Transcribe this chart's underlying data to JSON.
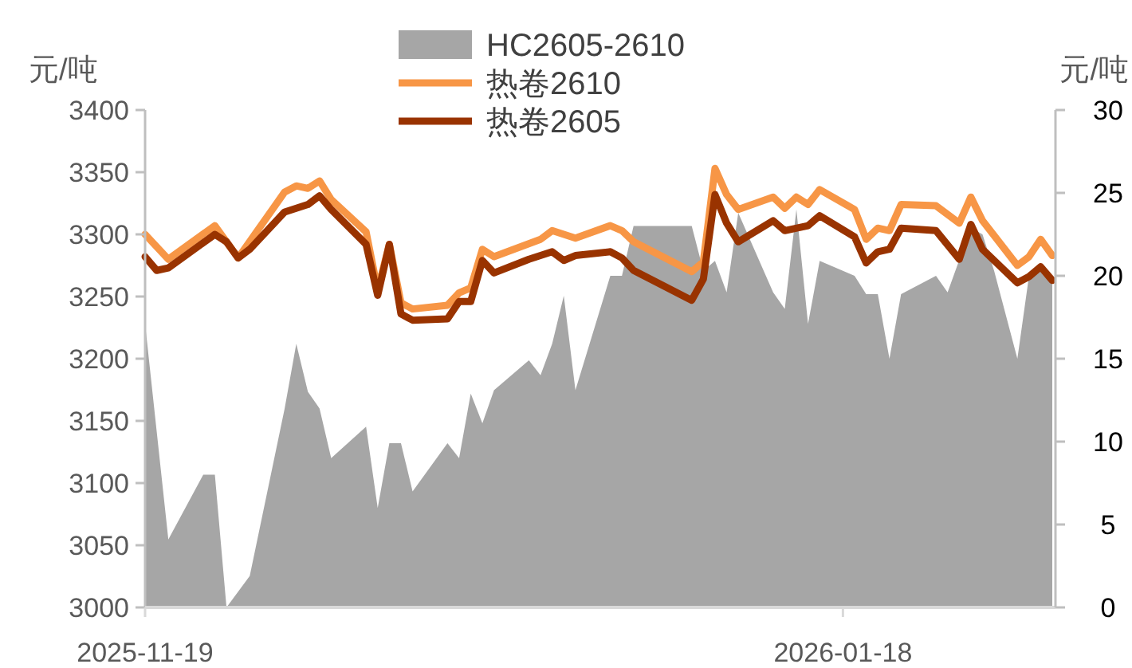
{
  "chart_data": {
    "type": "line",
    "ylabel": "元/吨",
    "y2label": "元/吨",
    "xlim": [
      "2025-11-19",
      "2026-02-05"
    ],
    "xticks": [
      "2025-11-19",
      "2026-01-18"
    ],
    "ylim": [
      3000,
      3400
    ],
    "yticks": [
      3000,
      3050,
      3100,
      3150,
      3200,
      3250,
      3300,
      3350,
      3400
    ],
    "y2lim": [
      0,
      30
    ],
    "y2ticks": [
      0,
      5,
      10,
      15,
      20,
      25,
      30
    ],
    "legend": "top",
    "series": [
      {
        "name": "HC2605-2610",
        "type": "area",
        "axis": "y2",
        "color": "#a6a6a6",
        "x": [
          "2025-11-19",
          "2025-11-21",
          "2025-11-24",
          "2025-11-25",
          "2025-11-26",
          "2025-11-28",
          "2025-12-01",
          "2025-12-02",
          "2025-12-03",
          "2025-12-04",
          "2025-12-05",
          "2025-12-08",
          "2025-12-09",
          "2025-12-10",
          "2025-12-11",
          "2025-12-12",
          "2025-12-15",
          "2025-12-16",
          "2025-12-17",
          "2025-12-18",
          "2025-12-19",
          "2025-12-22",
          "2025-12-23",
          "2025-12-24",
          "2025-12-25",
          "2025-12-26",
          "2025-12-29",
          "2025-12-30",
          "2025-12-31",
          "2026-01-05",
          "2026-01-06",
          "2026-01-07",
          "2026-01-08",
          "2026-01-09",
          "2026-01-12",
          "2026-01-13",
          "2026-01-14",
          "2026-01-15",
          "2026-01-16",
          "2026-01-19",
          "2026-01-20",
          "2026-01-21",
          "2026-01-22",
          "2026-01-23",
          "2026-01-26",
          "2026-01-27",
          "2026-01-29",
          "2026-01-30",
          "2026-01-31",
          "2026-02-02",
          "2026-02-03",
          "2026-02-04",
          "2026-02-05"
        ],
        "values": [
          17.1,
          4.1,
          8.0,
          8.0,
          0,
          1.9,
          12.0,
          15.9,
          13.0,
          12.0,
          9.0,
          10.9,
          6.0,
          9.9,
          9.9,
          7.0,
          9.9,
          9.0,
          12.9,
          11.1,
          13.1,
          14.9,
          14.0,
          15.9,
          18.8,
          13.1,
          20.0,
          20.0,
          23.0,
          23.0,
          20.3,
          20.9,
          19.0,
          23.8,
          19.0,
          18.0,
          24.0,
          17.1,
          20.9,
          20.0,
          18.9,
          18.9,
          15.0,
          18.9,
          20.0,
          19.0,
          22.9,
          22.5,
          20.3,
          15.0,
          20.0,
          20.3,
          20.0
        ]
      },
      {
        "name": "热卷2610",
        "color": "#f79646",
        "x": [
          "2025-11-19",
          "2025-11-21",
          "2025-11-25",
          "2025-11-27",
          "2025-12-01",
          "2025-12-02",
          "2025-12-03",
          "2025-12-04",
          "2025-12-05",
          "2025-12-08",
          "2025-12-09",
          "2025-12-10",
          "2025-12-11",
          "2025-12-12",
          "2025-12-15",
          "2025-12-16",
          "2025-12-17",
          "2025-12-18",
          "2025-12-19",
          "2025-12-23",
          "2025-12-24",
          "2025-12-26",
          "2025-12-29",
          "2025-12-30",
          "2025-12-31",
          "2026-01-05",
          "2026-01-06",
          "2026-01-07",
          "2026-01-08",
          "2026-01-09",
          "2026-01-12",
          "2026-01-13",
          "2026-01-14",
          "2026-01-15",
          "2026-01-16",
          "2026-01-19",
          "2026-01-20",
          "2026-01-21",
          "2026-01-22",
          "2026-01-23",
          "2026-01-26",
          "2026-01-28",
          "2026-01-29",
          "2026-01-30",
          "2026-02-02",
          "2026-02-03",
          "2026-02-04",
          "2026-02-05"
        ],
        "values": [
          3300,
          3280,
          3307,
          3281,
          3334,
          3339,
          3337,
          3343,
          3328,
          3302,
          3255,
          3292,
          3245,
          3240,
          3243,
          3253,
          3257,
          3288,
          3282,
          3296,
          3303,
          3297,
          3307,
          3303,
          3294,
          3270,
          3278,
          3353,
          3332,
          3320,
          3330,
          3321,
          3330,
          3324,
          3336,
          3320,
          3296,
          3305,
          3303,
          3324,
          3323,
          3309,
          3330,
          3311,
          3275,
          3282,
          3296,
          3283
        ]
      },
      {
        "name": "热卷2605",
        "color": "#993300",
        "x": [
          "2025-11-19",
          "2025-11-20",
          "2025-11-21",
          "2025-11-25",
          "2025-11-26",
          "2025-11-27",
          "2025-11-28",
          "2025-12-01",
          "2025-12-03",
          "2025-12-04",
          "2025-12-05",
          "2025-12-08",
          "2025-12-09",
          "2025-12-10",
          "2025-12-11",
          "2025-12-12",
          "2025-12-15",
          "2025-12-16",
          "2025-12-17",
          "2025-12-18",
          "2025-12-19",
          "2025-12-22",
          "2025-12-24",
          "2025-12-25",
          "2025-12-26",
          "2025-12-29",
          "2025-12-30",
          "2025-12-31",
          "2026-01-05",
          "2026-01-06",
          "2026-01-07",
          "2026-01-08",
          "2026-01-09",
          "2026-01-12",
          "2026-01-13",
          "2026-01-15",
          "2026-01-16",
          "2026-01-19",
          "2026-01-20",
          "2026-01-21",
          "2026-01-22",
          "2026-01-23",
          "2026-01-26",
          "2026-01-28",
          "2026-01-29",
          "2026-01-30",
          "2026-02-02",
          "2026-02-03",
          "2026-02-04",
          "2026-02-05"
        ],
        "values": [
          3282,
          3271,
          3273,
          3300,
          3294,
          3281,
          3288,
          3318,
          3324,
          3331,
          3320,
          3292,
          3251,
          3292,
          3236,
          3231,
          3232,
          3246,
          3246,
          3279,
          3269,
          3280,
          3286,
          3279,
          3283,
          3286,
          3281,
          3271,
          3247,
          3264,
          3332,
          3309,
          3294,
          3311,
          3303,
          3307,
          3315,
          3298,
          3277,
          3286,
          3288,
          3305,
          3303,
          3280,
          3308,
          3288,
          3261,
          3266,
          3274,
          3263
        ]
      }
    ]
  }
}
